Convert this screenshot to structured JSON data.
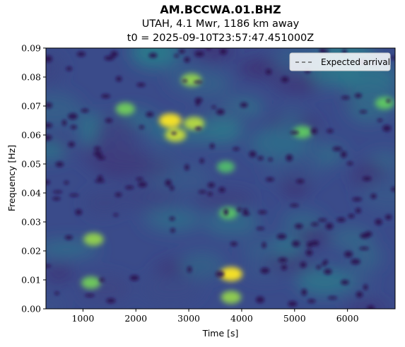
{
  "header": {
    "station": "AM.BCCWA.01.BHZ",
    "event": "UTAH, 4.1 Mwr, 1186 km away",
    "t0": "t0 = 2025-09-10T23:57:47.451000Z"
  },
  "chart_data": {
    "type": "heatmap",
    "xlabel": "Time [s]",
    "ylabel": "Frequency [Hz]",
    "xlim": [
      300,
      6900
    ],
    "ylim": [
      0,
      0.09
    ],
    "xticks": [
      1000,
      2000,
      3000,
      4000,
      5000,
      6000
    ],
    "xtick_labels": [
      "1000",
      "2000",
      "3000",
      "4000",
      "5000",
      "6000"
    ],
    "yticks": [
      0,
      0.01,
      0.02,
      0.03,
      0.04,
      0.05,
      0.06,
      0.07,
      0.08,
      0.09
    ],
    "ytick_labels": [
      "0.00",
      "0.01",
      "0.02",
      "0.03",
      "0.04",
      "0.05",
      "0.06",
      "0.07",
      "0.08",
      "0.09"
    ],
    "colormap": "viridis",
    "grid": false,
    "legend": {
      "position": "top-right",
      "entries": [
        {
          "name": "Expected arrival",
          "style": "dashed",
          "color": "#ffffff"
        }
      ]
    },
    "hotspots": [
      {
        "x": 2650,
        "y": 0.065,
        "intensity": 1.0
      },
      {
        "x": 2750,
        "y": 0.06,
        "intensity": 0.85
      },
      {
        "x": 3100,
        "y": 0.064,
        "intensity": 0.8
      },
      {
        "x": 3800,
        "y": 0.012,
        "intensity": 1.0
      },
      {
        "x": 3800,
        "y": 0.004,
        "intensity": 0.7
      },
      {
        "x": 1200,
        "y": 0.024,
        "intensity": 0.7
      },
      {
        "x": 1150,
        "y": 0.009,
        "intensity": 0.6
      },
      {
        "x": 3050,
        "y": 0.079,
        "intensity": 0.7
      },
      {
        "x": 1800,
        "y": 0.069,
        "intensity": 0.6
      },
      {
        "x": 5150,
        "y": 0.061,
        "intensity": 0.55
      },
      {
        "x": 6700,
        "y": 0.071,
        "intensity": 0.55
      },
      {
        "x": 3750,
        "y": 0.033,
        "intensity": 0.5
      },
      {
        "x": 3700,
        "y": 0.049,
        "intensity": 0.45
      }
    ]
  }
}
